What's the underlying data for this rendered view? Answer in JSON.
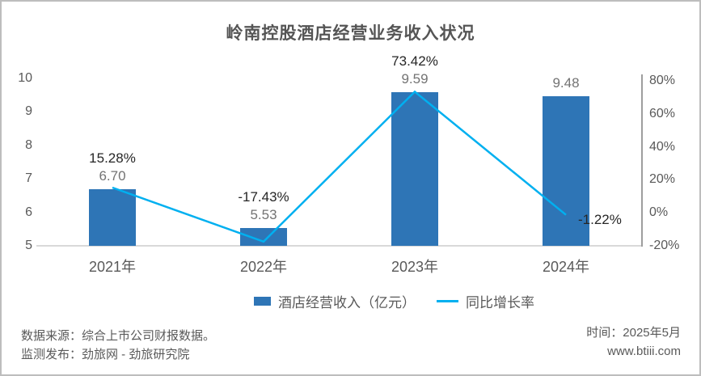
{
  "title": "岭南控股酒店经营业务收入状况",
  "chart_data": {
    "type": "bar",
    "subtype": "bar-line combo with dual y-axes",
    "title": "岭南控股酒店经营业务收入状况",
    "categories": [
      "2021年",
      "2022年",
      "2023年",
      "2024年"
    ],
    "series": [
      {
        "name": "酒店经营收入（亿元）",
        "type": "bar",
        "axis": "left",
        "color": "#2e75b6",
        "values": [
          6.7,
          5.53,
          9.59,
          9.48
        ],
        "labels": [
          "6.70",
          "5.53",
          "9.59",
          "9.48"
        ]
      },
      {
        "name": "同比增长率",
        "type": "line",
        "axis": "right",
        "color": "#00b0f0",
        "values": [
          15.28,
          -17.43,
          73.42,
          -1.22
        ],
        "labels": [
          "15.28%",
          "-17.43%",
          "73.42%",
          "-1.22%"
        ]
      }
    ],
    "axes": {
      "left": {
        "min": 5,
        "max": 10,
        "ticks": [
          {
            "label": "10",
            "value": 10
          },
          {
            "label": "9",
            "value": 9
          },
          {
            "label": "8",
            "value": 8
          },
          {
            "label": "7",
            "value": 7
          },
          {
            "label": "6",
            "value": 6
          },
          {
            "label": "5",
            "value": 5
          }
        ]
      },
      "right": {
        "min": -20,
        "max": 80,
        "ticks": [
          {
            "label": "80%",
            "value": 80
          },
          {
            "label": "60%",
            "value": 60
          },
          {
            "label": "40%",
            "value": 40
          },
          {
            "label": "20%",
            "value": 20
          },
          {
            "label": "0%",
            "value": 0
          },
          {
            "label": "-20%",
            "value": -20
          }
        ]
      }
    },
    "growth_label_placement": [
      "above-bar",
      "above-bar",
      "above-bar",
      "right-of-point"
    ],
    "legend_position": "bottom",
    "grid": false
  },
  "footer": {
    "source_line": "数据来源：综合上市公司财报数据。",
    "publisher_line": "监测发布：劲旅网 - 劲旅研究院",
    "time_label": "时间：2025年5月",
    "website": "www.btiii.com"
  },
  "colors": {
    "bar": "#2e75b6",
    "line": "#00b0f0",
    "baseline": "#d9d9d9",
    "right_axis_line": "#9e9e9e",
    "title_text": "#555555",
    "tick_text": "#595959",
    "value_label_text": "#737373",
    "pct_label_text": "#262626",
    "footer_text": "#595959",
    "frame_border": "#bdbdbd"
  }
}
